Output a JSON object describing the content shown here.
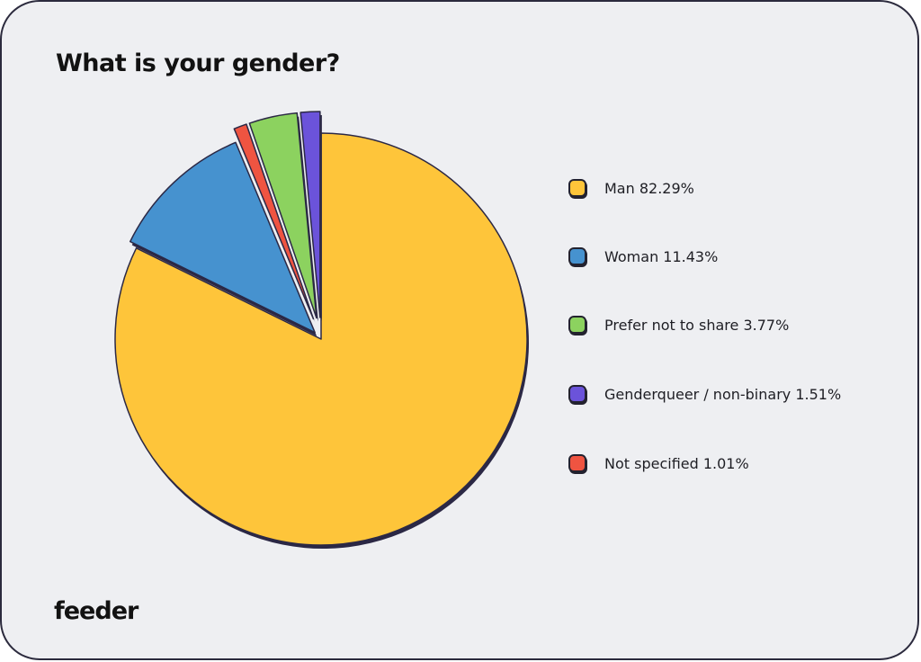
{
  "title": "What is your gender?",
  "brand": "feeder",
  "chart_data": {
    "type": "pie",
    "title": "What is your gender?",
    "slices": [
      {
        "label": "Man",
        "value": 82.29,
        "display": "Man 82.29%",
        "color": "#fec53a"
      },
      {
        "label": "Woman",
        "value": 11.43,
        "display": "Woman 11.43%",
        "color": "#4692cf"
      },
      {
        "label": "Not specified",
        "value": 1.01,
        "display": "Not specified 1.01%",
        "color": "#ef5441"
      },
      {
        "label": "Prefer not to share",
        "value": 3.77,
        "display": "Prefer not to share 3.77%",
        "color": "#8cd25f"
      },
      {
        "label": "Genderqueer / non-binary",
        "value": 1.51,
        "display": "Genderqueer / non-binary 1.51%",
        "color": "#6b53da"
      }
    ],
    "legend": [
      {
        "label": "Man 82.29%",
        "color": "#fec53a"
      },
      {
        "label": "Woman 11.43%",
        "color": "#4692cf"
      },
      {
        "label": "Prefer not to share 3.77%",
        "color": "#8cd25f"
      },
      {
        "label": "Genderqueer / non-binary 1.51%",
        "color": "#6b53da"
      },
      {
        "label": "Not specified 1.01%",
        "color": "#ef5441"
      }
    ],
    "legend_position": "right"
  }
}
